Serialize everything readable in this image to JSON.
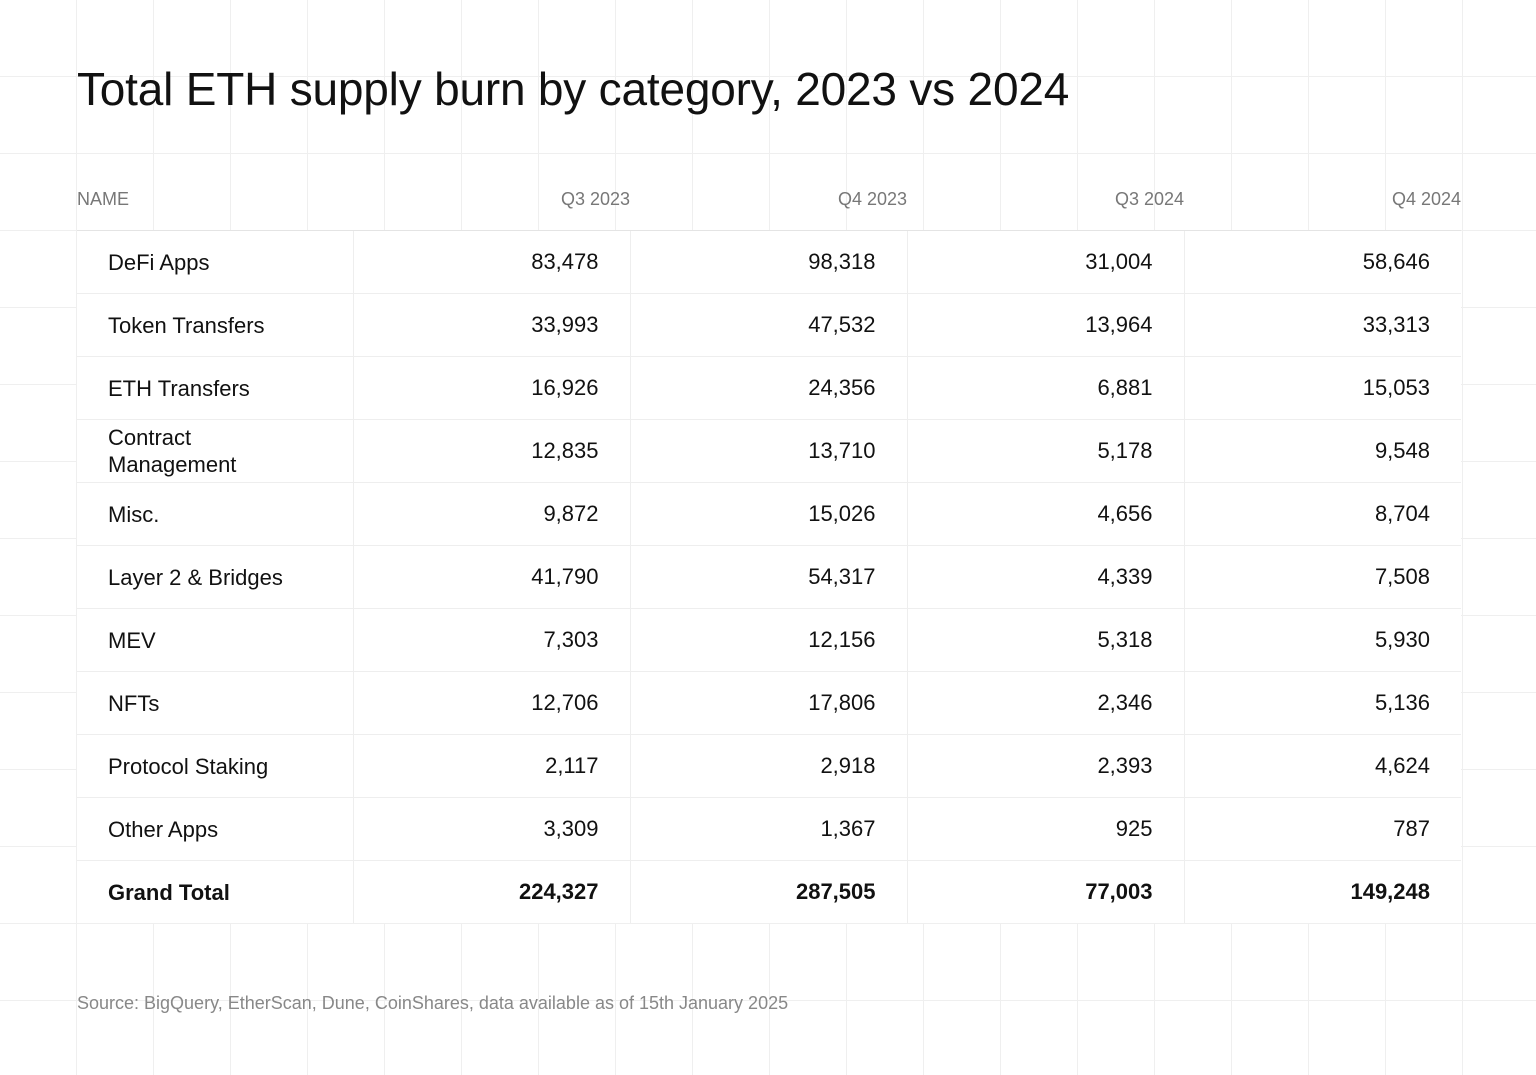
{
  "chart_data": {
    "type": "table",
    "title": "Total ETH supply burn by category, 2023 vs 2024",
    "columns": [
      "NAME",
      "Q3 2023",
      "Q4 2023",
      "Q3 2024",
      "Q4 2024"
    ],
    "rows": [
      {
        "name": "DeFi Apps",
        "values": [
          "83,478",
          "98,318",
          "31,004",
          "58,646"
        ]
      },
      {
        "name": "Token Transfers",
        "values": [
          "33,993",
          "47,532",
          "13,964",
          "33,313"
        ]
      },
      {
        "name": "ETH Transfers",
        "values": [
          "16,926",
          "24,356",
          "6,881",
          "15,053"
        ]
      },
      {
        "name": "Contract Management",
        "values": [
          "12,835",
          "13,710",
          "5,178",
          "9,548"
        ]
      },
      {
        "name": "Misc.",
        "values": [
          "9,872",
          "15,026",
          "4,656",
          "8,704"
        ]
      },
      {
        "name": "Layer 2 & Bridges",
        "values": [
          "41,790",
          "54,317",
          "4,339",
          "7,508"
        ]
      },
      {
        "name": "MEV",
        "values": [
          "7,303",
          "12,156",
          "5,318",
          "5,930"
        ]
      },
      {
        "name": "NFTs",
        "values": [
          "12,706",
          "17,806",
          "2,346",
          "5,136"
        ]
      },
      {
        "name": "Protocol Staking",
        "values": [
          "2,117",
          "2,918",
          "2,393",
          "4,624"
        ]
      },
      {
        "name": "Other Apps",
        "values": [
          "3,309",
          "1,367",
          "925",
          "787"
        ]
      }
    ],
    "total": {
      "name": "Grand Total",
      "values": [
        "224,327",
        "287,505",
        "77,003",
        "149,248"
      ]
    },
    "source": "Source: BigQuery, EtherScan, Dune, CoinShares, data available as of 15th January 2025"
  }
}
